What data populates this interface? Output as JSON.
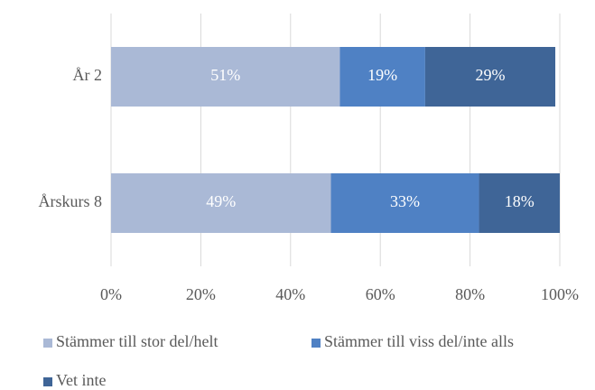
{
  "chart_data": {
    "type": "stacked-barh",
    "categories": [
      "År 2",
      "Årskurs 8"
    ],
    "series": [
      {
        "name": "Stämmer till stor del/helt",
        "color": "#aab9d6",
        "values": [
          51,
          49
        ],
        "value_labels": [
          "51%",
          "49%"
        ]
      },
      {
        "name": "Stämmer till viss del/inte alls",
        "color": "#4f81c4",
        "values": [
          19,
          33
        ],
        "value_labels": [
          "19%",
          "33%"
        ]
      },
      {
        "name": "Vet inte",
        "color": "#3f6597",
        "values": [
          29,
          18
        ],
        "value_labels": [
          "29%",
          "18%"
        ]
      }
    ],
    "xlim": [
      0,
      100
    ],
    "xticks": [
      {
        "value": 0,
        "label": "0%"
      },
      {
        "value": 20,
        "label": "20%"
      },
      {
        "value": 40,
        "label": "40%"
      },
      {
        "value": 60,
        "label": "60%"
      },
      {
        "value": 80,
        "label": "80%"
      },
      {
        "value": 100,
        "label": "100%"
      }
    ],
    "grid": true,
    "legend": "bottom"
  }
}
